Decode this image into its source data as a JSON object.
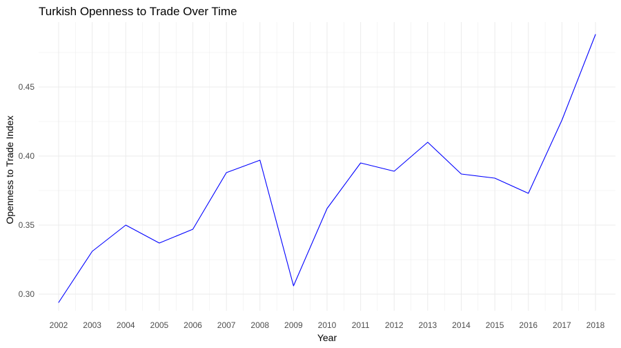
{
  "chart_data": {
    "type": "line",
    "title": "Turkish Openness to Trade Over Time",
    "xlabel": "Year",
    "ylabel": "Openness to Trade Index",
    "x": [
      "2002",
      "2003",
      "2004",
      "2005",
      "2006",
      "2007",
      "2008",
      "2009",
      "2010",
      "2011",
      "2012",
      "2013",
      "2014",
      "2015",
      "2016",
      "2017",
      "2018"
    ],
    "series": [
      {
        "values": [
          0.294,
          0.331,
          0.35,
          0.337,
          0.347,
          0.388,
          0.397,
          0.306,
          0.362,
          0.395,
          0.389,
          0.41,
          0.387,
          0.384,
          0.373,
          0.426,
          0.488
        ]
      }
    ],
    "y_ticks": [
      "0.30",
      "0.35",
      "0.40",
      "0.45"
    ],
    "ylim": [
      0.285,
      0.495
    ],
    "grid": true,
    "legend": "none",
    "colors": {
      "line": "#0000ff",
      "grid": "#ebebeb",
      "background": "#ffffff"
    }
  }
}
